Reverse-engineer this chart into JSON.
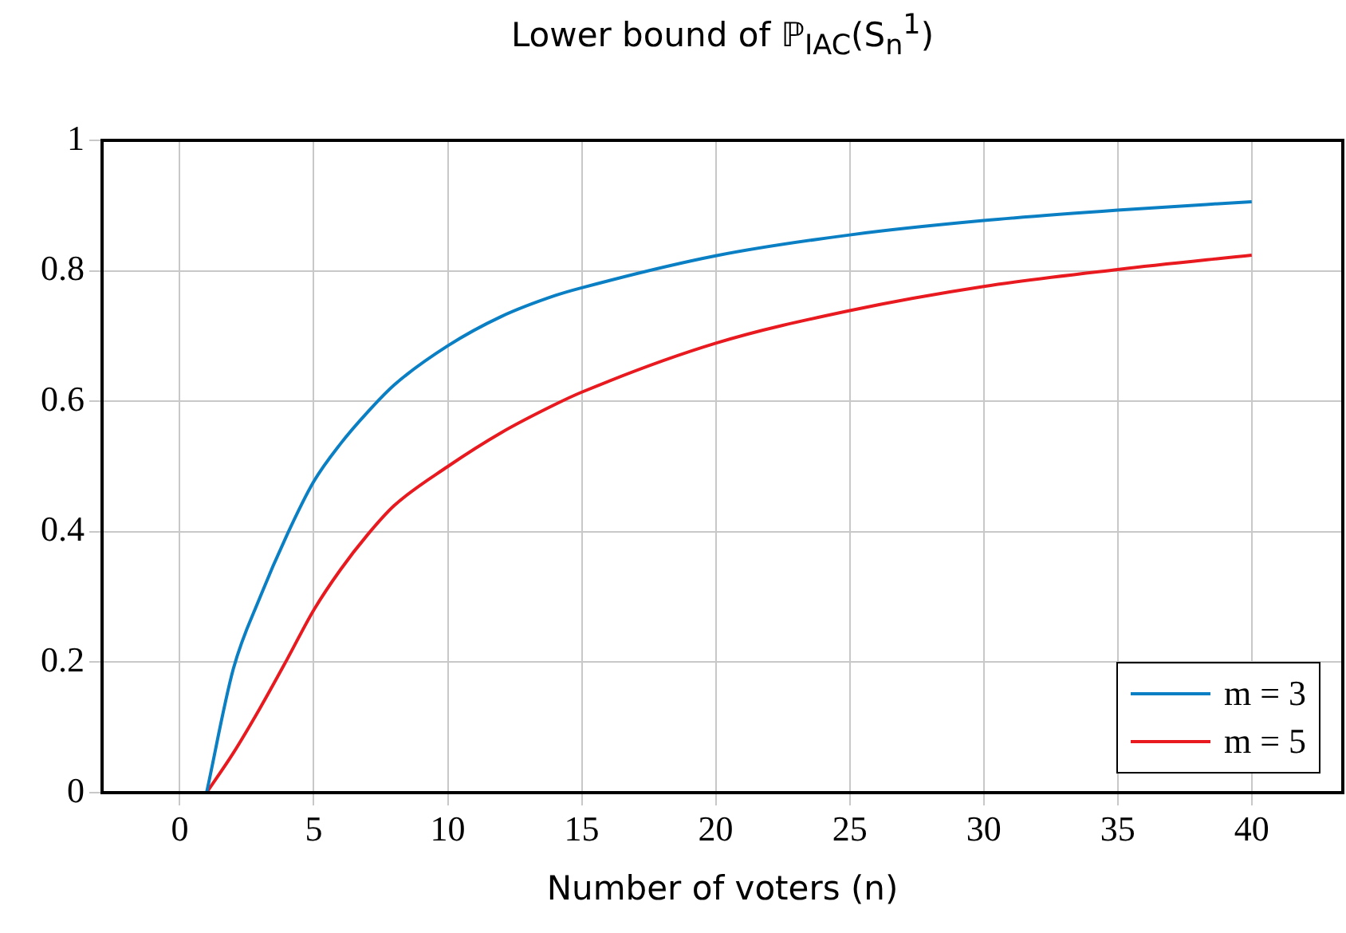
{
  "chart_data": {
    "type": "line",
    "title": "Lower bound of ℙ$_{IAC}$(S$_{n}$$^{1}$)",
    "xlabel": "Number of voters (n)",
    "xlim": [
      -2.9,
      43.4
    ],
    "xticks": [
      0,
      5,
      10,
      15,
      20,
      25,
      30,
      35,
      40
    ],
    "ylim": [
      0,
      1
    ],
    "yticks": [
      0,
      0.2,
      0.4,
      0.6,
      0.8,
      1
    ],
    "grid": true,
    "legend": "bottom right",
    "marker": "none",
    "line_style": "solid",
    "series": [
      {
        "name": "m = 3",
        "color": "#0a7fc4",
        "x": [
          1,
          2,
          3,
          4,
          5,
          6,
          7,
          8,
          10,
          12,
          14,
          15,
          20,
          25,
          30,
          35,
          40
        ],
        "values": [
          0,
          0.19,
          0.3,
          0.395,
          0.477,
          0.535,
          0.583,
          0.625,
          0.685,
          0.73,
          0.762,
          0.774,
          0.823,
          0.855,
          0.877,
          0.893,
          0.906
        ]
      },
      {
        "name": "m = 5",
        "color": "#e8191f",
        "x": [
          1,
          2,
          3,
          4,
          5,
          6,
          7,
          8,
          10,
          12,
          14,
          15,
          20,
          25,
          30,
          35,
          40
        ],
        "values": [
          0,
          0.061,
          0.13,
          0.204,
          0.28,
          0.342,
          0.395,
          0.44,
          0.5,
          0.552,
          0.595,
          0.614,
          0.689,
          0.739,
          0.776,
          0.802,
          0.824
        ]
      }
    ]
  }
}
